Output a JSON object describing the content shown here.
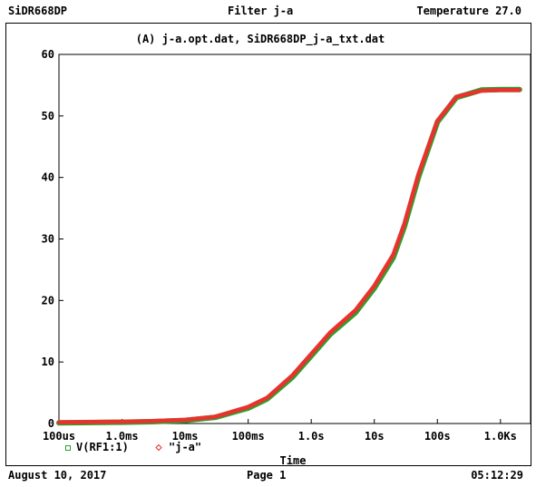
{
  "header": {
    "left": "SiDR668DP",
    "center": "Filter j-a",
    "right": "Temperature 27.0"
  },
  "footer": {
    "date": "August 10, 2017",
    "page": "Page 1",
    "time": "05:12:29"
  },
  "colors": {
    "series_sim": "#2ca02c",
    "series_data": "#e8322d"
  },
  "chart_data": {
    "type": "line",
    "title": "(A) j-a.opt.dat, SiDR668DP_j-a_txt.dat",
    "xlabel": "Time",
    "ylabel": "",
    "x_scale": "log",
    "x_range": [
      0.0001,
      3000
    ],
    "ylim": [
      0,
      60
    ],
    "grid": false,
    "x_ticks": [
      {
        "value": 0.0001,
        "label": "100us"
      },
      {
        "value": 0.001,
        "label": "1.0ms"
      },
      {
        "value": 0.01,
        "label": "10ms"
      },
      {
        "value": 0.1,
        "label": "100ms"
      },
      {
        "value": 1,
        "label": "1.0s"
      },
      {
        "value": 10,
        "label": "10s"
      },
      {
        "value": 100,
        "label": "100s"
      },
      {
        "value": 1000,
        "label": "1.0Ks"
      }
    ],
    "y_ticks": [
      0,
      10,
      20,
      30,
      40,
      50,
      60
    ],
    "legend_position": "bottom-left",
    "series": [
      {
        "name": "V(RF1:1)",
        "marker": "square",
        "x": [
          0.0001,
          0.001,
          0.003,
          0.01,
          0.03,
          0.1,
          0.2,
          0.5,
          1,
          2,
          5,
          10,
          20,
          30,
          50,
          100,
          200,
          500,
          1000,
          2000
        ],
        "y": [
          0.1,
          0.2,
          0.3,
          0.5,
          1,
          2.5,
          4,
          7.5,
          11,
          14.5,
          18,
          22,
          27,
          32,
          40,
          49,
          53,
          54.2,
          54.3,
          54.3
        ]
      },
      {
        "name": "\"j-a\"",
        "marker": "diamond",
        "x": [
          0.0001,
          0.001,
          0.003,
          0.01,
          0.03,
          0.1,
          0.2,
          0.5,
          1,
          2,
          5,
          10,
          20,
          30,
          50,
          100,
          200,
          500,
          1000,
          2000
        ],
        "y": [
          0.2,
          0.3,
          0.4,
          0.6,
          1.1,
          2.7,
          4.2,
          7.8,
          11.3,
          14.8,
          18.4,
          22.4,
          27.5,
          32.5,
          40.5,
          49.2,
          53.1,
          54.1,
          54.2,
          54.2
        ]
      }
    ]
  }
}
